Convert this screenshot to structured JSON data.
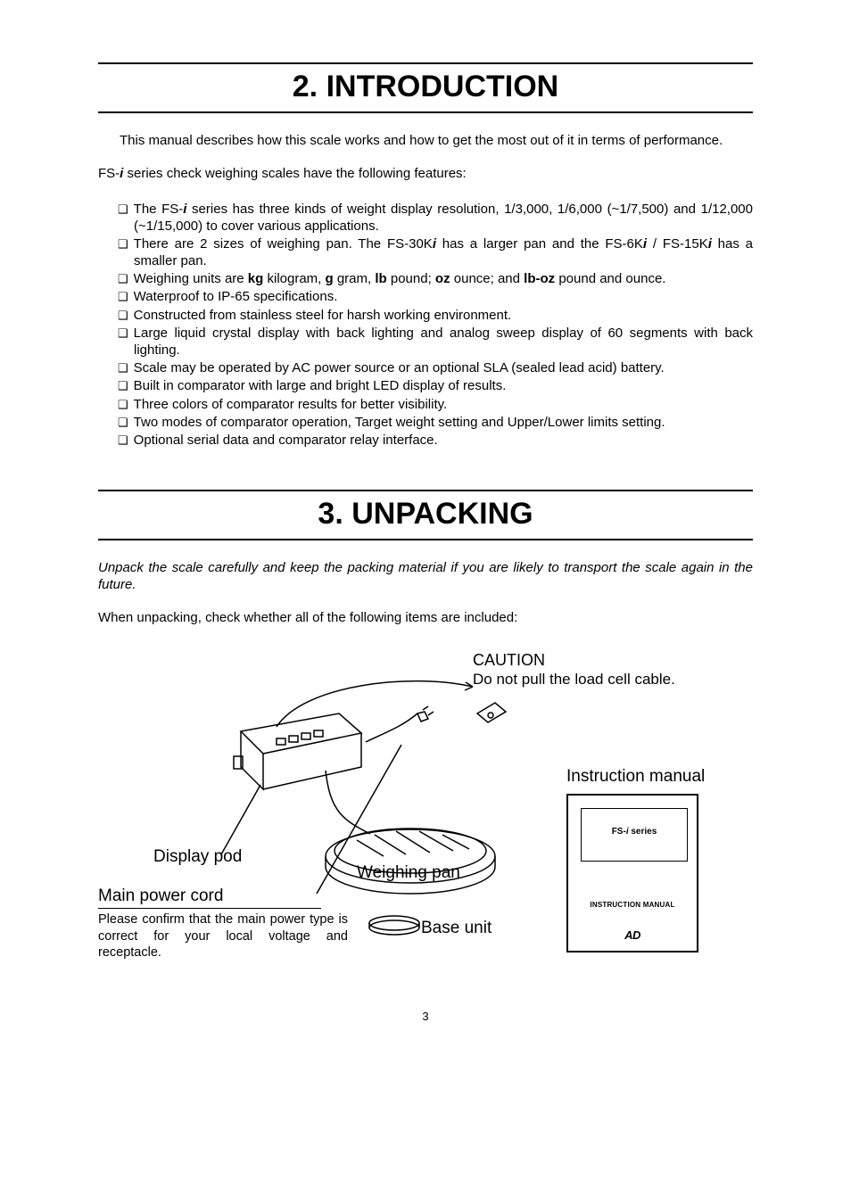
{
  "colors": {
    "text": "#000000",
    "background": "#ffffff",
    "rule": "#000000"
  },
  "typography": {
    "body_family": "Arial, Helvetica, sans-serif",
    "heading_size_pt": 26,
    "body_size_pt": 11,
    "label_size_pt": 14
  },
  "section2": {
    "title": "2. INTRODUCTION",
    "intro": "This manual describes how this scale works and how to get the most out of it in terms of performance.",
    "features_intro_prefix": "FS-",
    "features_intro_i": "i",
    "features_intro_suffix": " series check weighing scales have the following features:",
    "items": [
      {
        "parts": [
          {
            "t": "The FS-"
          },
          {
            "t": "i",
            "style": "bi"
          },
          {
            "t": " series has three kinds of weight display resolution, 1/3,000, 1/6,000 (~1/7,500) and 1/12,000 (~1/15,000) to cover various applications."
          }
        ]
      },
      {
        "parts": [
          {
            "t": "There are 2 sizes of weighing pan. The FS-30K"
          },
          {
            "t": "i",
            "style": "bi"
          },
          {
            "t": " has a larger pan and the FS-6K"
          },
          {
            "t": "i",
            "style": "bi"
          },
          {
            "t": " / FS-15K"
          },
          {
            "t": "i",
            "style": "bi"
          },
          {
            "t": " has a smaller pan."
          }
        ]
      },
      {
        "parts": [
          {
            "t": "Weighing units are "
          },
          {
            "t": "kg",
            "style": "b"
          },
          {
            "t": " kilogram, "
          },
          {
            "t": "g",
            "style": "b"
          },
          {
            "t": " gram, "
          },
          {
            "t": "lb",
            "style": "b"
          },
          {
            "t": " pound; "
          },
          {
            "t": "oz",
            "style": "b"
          },
          {
            "t": " ounce; and "
          },
          {
            "t": "lb-oz",
            "style": "b"
          },
          {
            "t": " pound and ounce."
          }
        ]
      },
      {
        "parts": [
          {
            "t": "Waterproof to IP-65 specifications."
          }
        ]
      },
      {
        "parts": [
          {
            "t": "Constructed from stainless steel for harsh working environment."
          }
        ]
      },
      {
        "parts": [
          {
            "t": "Large liquid crystal display with back lighting and analog sweep display of 60 segments with back lighting."
          }
        ]
      },
      {
        "parts": [
          {
            "t": "Scale may be operated by AC power source or an optional SLA (sealed lead acid) battery."
          }
        ]
      },
      {
        "parts": [
          {
            "t": "Built in comparator with large and bright LED display of results."
          }
        ]
      },
      {
        "parts": [
          {
            "t": "Three colors of comparator results for better visibility."
          }
        ]
      },
      {
        "parts": [
          {
            "t": "Two modes of comparator operation, Target weight setting and Upper/Lower limits setting."
          }
        ]
      },
      {
        "parts": [
          {
            "t": "Optional serial data and comparator relay interface."
          }
        ]
      }
    ]
  },
  "section3": {
    "title": "3. UNPACKING",
    "para": "Unpack the scale carefully and keep the packing material if you are likely to transport the scale again in the future.",
    "check": "When unpacking, check whether all of the following items are included:"
  },
  "diagram": {
    "caution_label": "CAUTION",
    "caution_text": "Do not pull the load cell cable.",
    "instruction_label": "Instruction manual",
    "display_pod": "Display pod",
    "weighing_pan": "Weighing pan",
    "main_power": "Main power cord",
    "power_note": "Please confirm that the main power type is correct for your local voltage and receptacle.",
    "base_unit": "Base unit",
    "booklet": {
      "title_prefix": "FS-",
      "title_i": "i",
      "title_suffix": " series",
      "mid": "INSTRUCTION MANUAL",
      "logo": "AD"
    }
  },
  "page_number": "3"
}
